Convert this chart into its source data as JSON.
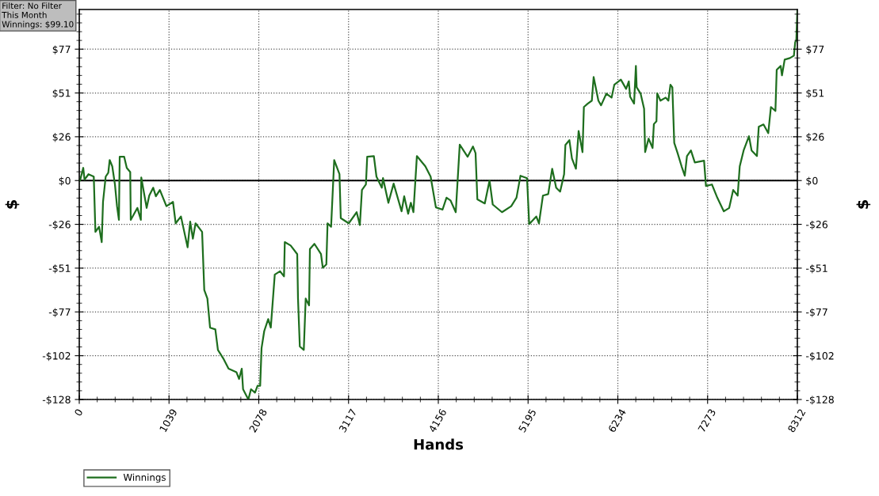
{
  "chart_data": {
    "type": "line",
    "xlabel": "Hands",
    "ylabel": "$",
    "y2label": "$",
    "annotations": [
      "Filter: No Filter\nThis Month\nWinnings: $99.10"
    ],
    "xlim": [
      0,
      8312
    ],
    "xticks": [
      0,
      1039,
      2078,
      3117,
      4156,
      5195,
      6234,
      7273,
      8312
    ],
    "ylim": [
      -128,
      100
    ],
    "yticks": [
      {
        "value": -128,
        "label": "-$128"
      },
      {
        "value": -102.4,
        "label": "-$102"
      },
      {
        "value": -76.8,
        "label": "-$77"
      },
      {
        "value": -51.2,
        "label": "-$51"
      },
      {
        "value": -25.6,
        "label": "-$26"
      },
      {
        "value": 0,
        "label": "$0"
      },
      {
        "value": 25.6,
        "label": "$26"
      },
      {
        "value": 51.2,
        "label": "$51"
      },
      {
        "value": 76.8,
        "label": "$77"
      }
    ],
    "y2lim": [
      -128,
      100
    ],
    "y2ticks": [
      {
        "value": -128,
        "label": "-$128"
      },
      {
        "value": -102.4,
        "label": "-$102"
      },
      {
        "value": -76.8,
        "label": "-$77"
      },
      {
        "value": -51.2,
        "label": "-$51"
      },
      {
        "value": -25.6,
        "label": "-$26"
      },
      {
        "value": 0,
        "label": "$0"
      },
      {
        "value": 25.6,
        "label": "$26"
      },
      {
        "value": 51.2,
        "label": "$51"
      },
      {
        "value": 76.8,
        "label": "$77"
      }
    ],
    "ref_lines": [
      {
        "axis": "y",
        "value": 0,
        "color": "#000000"
      }
    ],
    "grid": true,
    "legend": "bottom left",
    "line_style": "solid",
    "marker": "none",
    "series": [
      {
        "name": "Winnings",
        "color": "#1e6e1e",
        "x": [
          0,
          9,
          46,
          61,
          107,
          168,
          187,
          229,
          260,
          275,
          306,
          336,
          352,
          382,
          413,
          437,
          459,
          468,
          520,
          550,
          590,
          596,
          673,
          713,
          718,
          780,
          810,
          856,
          887,
          933,
          1009,
          1085,
          1116,
          1177,
          1254,
          1284,
          1315,
          1346,
          1422,
          1447,
          1483,
          1514,
          1575,
          1605,
          1667,
          1728,
          1819,
          1850,
          1881,
          1896,
          1957,
          1988,
          2034,
          2064,
          2094,
          2110,
          2141,
          2187,
          2217,
          2263,
          2324,
          2370,
          2379,
          2447,
          2523,
          2532,
          2553,
          2599,
          2621,
          2660,
          2670,
          2722,
          2798,
          2819,
          2860,
          2874,
          2915,
          2951,
          3012,
          3027,
          3119,
          3211,
          3248,
          3272,
          3318,
          3333,
          3410,
          3440,
          3502,
          3516,
          3578,
          3639,
          3731,
          3761,
          3807,
          3838,
          3868,
          3908,
          4006,
          4067,
          4128,
          4205,
          4251,
          4297,
          4358,
          4404,
          4495,
          4557,
          4587,
          4608,
          4694,
          4749,
          4786,
          4893,
          5000,
          5061,
          5107,
          5183,
          5208,
          5290,
          5321,
          5367,
          5428,
          5474,
          5520,
          5566,
          5612,
          5627,
          5673,
          5703,
          5749,
          5780,
          5825,
          5841,
          5887,
          5933,
          5954,
          6009,
          6040,
          6101,
          6162,
          6193,
          6269,
          6330,
          6361,
          6376,
          6422,
          6443,
          6452,
          6498,
          6538,
          6550,
          6590,
          6636,
          6651,
          6681,
          6690,
          6727,
          6788,
          6819,
          6843,
          6865,
          6887,
          6926,
          6972,
          7009,
          7034,
          7080,
          7125,
          7232,
          7254,
          7323,
          7385,
          7461,
          7523,
          7569,
          7621,
          7645,
          7690,
          7752,
          7782,
          7844,
          7865,
          7920,
          7975,
          8006,
          8058,
          8073,
          8119,
          8134,
          8165,
          8226,
          8272,
          8287,
          8300,
          8312
        ],
        "values": [
          0,
          0,
          7.4,
          0.5,
          3.7,
          2.3,
          -30,
          -27,
          -36,
          -12.5,
          2.3,
          4.6,
          12,
          8.3,
          -2.3,
          -15,
          -23,
          13.9,
          13.9,
          7.4,
          5,
          -23,
          -16,
          -23,
          1.8,
          -16,
          -8.8,
          -4.2,
          -9.2,
          -5.5,
          -15,
          -12.5,
          -25,
          -21,
          -39,
          -24,
          -34,
          -25,
          -30,
          -64,
          -69,
          -86,
          -87,
          -99,
          -104,
          -110,
          -112,
          -116,
          -110,
          -122,
          -128,
          -122,
          -124,
          -120,
          -120,
          -98,
          -88,
          -81,
          -86,
          -55,
          -53,
          -56,
          -36,
          -38,
          -43,
          -69,
          -97,
          -99,
          -69,
          -73,
          -40,
          -37,
          -43,
          -51,
          -49,
          -25,
          -27,
          12,
          3.7,
          -22,
          -25,
          -18.5,
          -26,
          -5.5,
          -2.3,
          13.9,
          14.3,
          2.3,
          -4.2,
          1.4,
          -13,
          -1.8,
          -18,
          -9.2,
          -19.4,
          -13,
          -18.5,
          14.3,
          8.3,
          2.3,
          -15.7,
          -17,
          -10,
          -11.6,
          -18.5,
          21,
          13.9,
          19.9,
          16,
          -11,
          -13.4,
          0,
          -14,
          -18.5,
          -15,
          -10,
          2.8,
          1.4,
          -25.4,
          -21,
          -25,
          -8.8,
          -7.9,
          6.9,
          -4.2,
          -6.5,
          3.7,
          20.8,
          23.6,
          12.9,
          6.9,
          29,
          16.6,
          43,
          45,
          46.7,
          60.5,
          46.7,
          44,
          50.8,
          48.5,
          56,
          59,
          53.6,
          58,
          49,
          45,
          67,
          54.5,
          50.8,
          42,
          16.6,
          24.5,
          19,
          33,
          34.7,
          51,
          46.7,
          48.5,
          46.7,
          56,
          54.5,
          22,
          16,
          8.3,
          2.8,
          14.3,
          17.6,
          10.6,
          11.6,
          -3.2,
          -2.3,
          -10,
          -18,
          -16,
          -5.5,
          -8.8,
          8.3,
          17.6,
          25.9,
          17.6,
          14.3,
          31.4,
          32.8,
          27.7,
          43,
          40.7,
          64.7,
          67,
          61.5,
          70.7,
          71.6,
          73,
          80.9,
          82,
          99.1
        ]
      }
    ]
  }
}
